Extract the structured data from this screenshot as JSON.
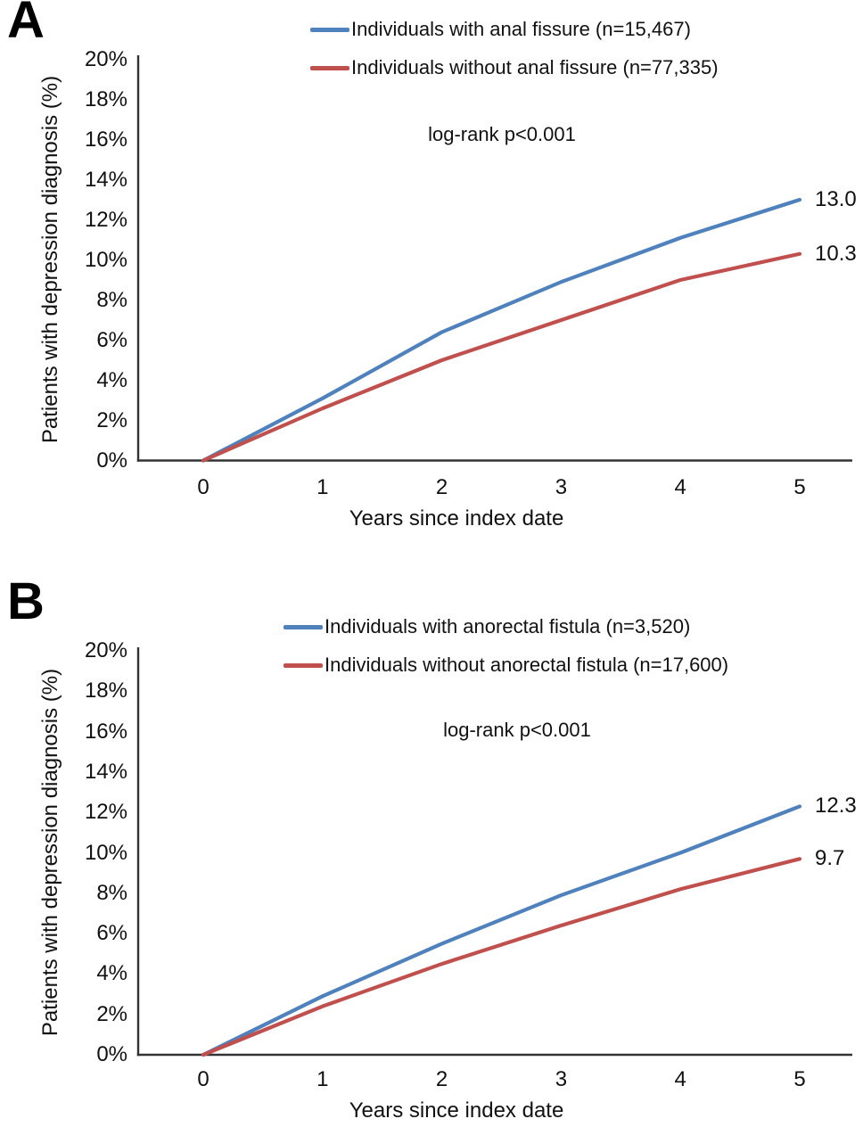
{
  "figure": {
    "type": "kaplan-meier-cumulative-incidence",
    "background": "#ffffff",
    "accent_blue": "#4F81BD",
    "accent_red": "#C0504D",
    "axis_color": "#333333"
  },
  "chart_data": [
    {
      "type": "line",
      "panel": "A",
      "annotation": "log-rank p<0.001",
      "xlabel": "Years since index date",
      "ylabel": "Patients with depression diagnosis (%)",
      "x": [
        0,
        1,
        2,
        3,
        4,
        5
      ],
      "xticks": [
        "0",
        "1",
        "2",
        "3",
        "4",
        "5"
      ],
      "yticks": [
        "0%",
        "2%",
        "4%",
        "6%",
        "8%",
        "10%",
        "12%",
        "14%",
        "16%",
        "18%",
        "20%"
      ],
      "xlim": [
        0,
        5
      ],
      "ylim": [
        0,
        20
      ],
      "grid": false,
      "legend_position": "top-center",
      "series": [
        {
          "name": "Individuals with anal fissure (n=15,467)",
          "color": "#4F81BD",
          "values": [
            0,
            3.1,
            6.4,
            8.9,
            11.1,
            13.0
          ],
          "end_label": "13.0"
        },
        {
          "name": "Individuals without anal fissure (n=77,335)",
          "color": "#C0504D",
          "values": [
            0,
            2.6,
            5.0,
            7.0,
            9.0,
            10.3
          ],
          "end_label": "10.3"
        }
      ]
    },
    {
      "type": "line",
      "panel": "B",
      "annotation": "log-rank p<0.001",
      "xlabel": "Years since index date",
      "ylabel": "Patients with depression diagnosis (%)",
      "x": [
        0,
        1,
        2,
        3,
        4,
        5
      ],
      "xticks": [
        "0",
        "1",
        "2",
        "3",
        "4",
        "5"
      ],
      "yticks": [
        "0%",
        "2%",
        "4%",
        "6%",
        "8%",
        "10%",
        "12%",
        "14%",
        "16%",
        "18%",
        "20%"
      ],
      "xlim": [
        0,
        5
      ],
      "ylim": [
        0,
        20
      ],
      "grid": false,
      "legend_position": "top-center",
      "series": [
        {
          "name": "Individuals with anorectal fistula (n=3,520)",
          "color": "#4F81BD",
          "values": [
            0,
            2.9,
            5.5,
            7.9,
            10.0,
            12.3
          ],
          "end_label": "12.3"
        },
        {
          "name": "Individuals without anorectal fistula (n=17,600)",
          "color": "#C0504D",
          "values": [
            0,
            2.4,
            4.5,
            6.4,
            8.2,
            9.7
          ],
          "end_label": "9.7"
        }
      ]
    }
  ]
}
